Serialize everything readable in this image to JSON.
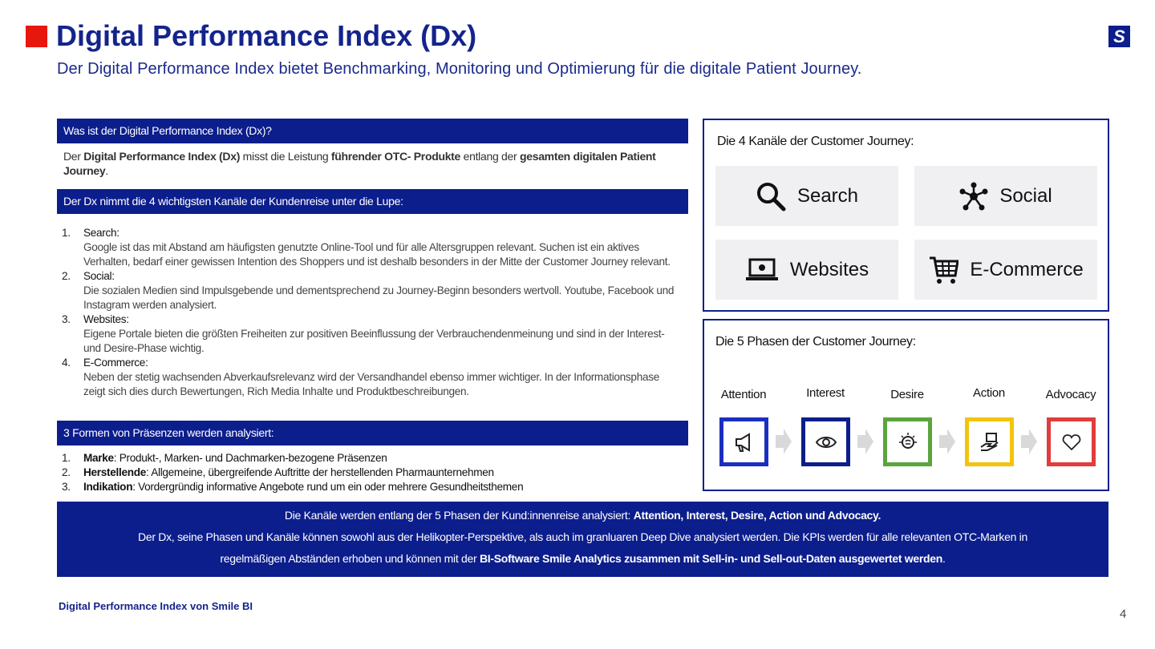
{
  "header": {
    "title": "Digital Performance Index (Dx)",
    "subtitle": "Der Digital Performance Index bietet Benchmarking, Monitoring und Optimierung für die digitale Patient Journey.",
    "logo": "S"
  },
  "sections": [
    {
      "heading": "Was ist der Digital Performance Index (Dx)?",
      "paragraph": [
        {
          "text": "Der ",
          "bold": false
        },
        {
          "text": "Digital Performance Index (Dx)",
          "bold": true
        },
        {
          "text": " misst die Leistung ",
          "bold": false
        },
        {
          "text": "führender OTC-  Produkte",
          "bold": true
        },
        {
          "text": " entlang der ",
          "bold": false
        },
        {
          "text": "gesamten digitalen Patient Journey",
          "bold": true
        },
        {
          "text": ".",
          "bold": false
        }
      ]
    },
    {
      "heading": "Der Dx nimmt die 4 wichtigsten Kanäle der Kundenreise unter die Lupe:",
      "items": [
        {
          "number": "1.",
          "title": "Search:",
          "text": "Google ist das mit Abstand am häufigsten genutzte Online-Tool und für alle  Altersgruppen relevant. Suchen ist ein aktives Verhalten, bedarf einer gewissen Intention des Shoppers und ist deshalb besonders in der Mitte der Customer Journey relevant."
        },
        {
          "number": "2.",
          "title": "Social:",
          "text": "Die sozialen Medien sind Impulsgebende und dementsprechend zu Journey-Beginn besonders wertvoll. Youtube, Facebook und Instagram werden  analysiert."
        },
        {
          "number": "3.",
          "title": "Websites:",
          "text": "Eigene Portale bieten die größten Freiheiten zur positiven Beeinflussung der Verbrauchendenmeinung und sind in der Interest- und Desire-Phase wichtig."
        },
        {
          "number": "4.",
          "title": "E-Commerce:",
          "text": "Neben der stetig wachsenden Abverkaufsrelevanz wird der Versandhandel ebenso immer wichtiger. In der Informationsphase zeigt sich dies durch Bewertungen, Rich Media Inhalte und Produktbeschreibungen."
        }
      ]
    },
    {
      "heading": "3 Formen von Präsenzen werden analysiert:",
      "items": [
        {
          "number": "1.",
          "segments": [
            {
              "text": "Marke",
              "bold": true
            },
            {
              "text": ": Produkt-, Marken- und Dachmarken-bezogene Präsenzen",
              "bold": false
            }
          ]
        },
        {
          "number": "2.",
          "segments": [
            {
              "text": "Herstellende",
              "bold": true
            },
            {
              "text": ": Allgemeine, übergreifende Auftritte der herstellenden Pharmaunternehmen",
              "bold": false
            }
          ]
        },
        {
          "number": "3.",
          "segments": [
            {
              "text": "Indikation",
              "bold": true
            },
            {
              "text": ": Vordergründig informative Angebote rund um ein oder mehrere Gesundheitsthemen",
              "bold": false
            }
          ]
        }
      ]
    }
  ],
  "channels": {
    "title": "Die 4 Kanäle der Customer Journey:",
    "items": [
      "Search",
      "Social",
      "Websites",
      "E-Commerce"
    ]
  },
  "phases": {
    "title": "Die 5 Phasen der Customer Journey:",
    "items": [
      {
        "label": "Attention",
        "color": "#1a2fc0"
      },
      {
        "label": "Interest",
        "color": "#0c1e8c"
      },
      {
        "label": "Desire",
        "color": "#5aa53c"
      },
      {
        "label": "Action",
        "color": "#f2c40c"
      },
      {
        "label": "Advocacy",
        "color": "#e23c3c"
      }
    ]
  },
  "summary": {
    "paragraphs": [
      [
        {
          "text": "Die Kanäle werden entlang der 5 Phasen der Kund:innenreise analysiert: ",
          "bold": false
        },
        {
          "text": "Attention, Interest, Desire, Action und Advocacy.",
          "bold": true
        }
      ],
      [
        {
          "text": "Der Dx, seine Phasen und Kanäle können sowohl aus der Helikopter-Perspektive, als auch im granluaren Deep Dive  analysiert werden. Die KPIs werden für alle relevanten OTC-Marken in regelmäßigen Abständen erhoben und können mit der ",
          "bold": false
        },
        {
          "text": "BI-Software Smile Analytics zusammen  mit Sell-in- und Sell-out-Daten ausgewertet werden",
          "bold": true
        },
        {
          "text": ".",
          "bold": false
        }
      ]
    ]
  },
  "footer": {
    "source": "Digital Performance Index von Smile BI",
    "page": "4"
  }
}
